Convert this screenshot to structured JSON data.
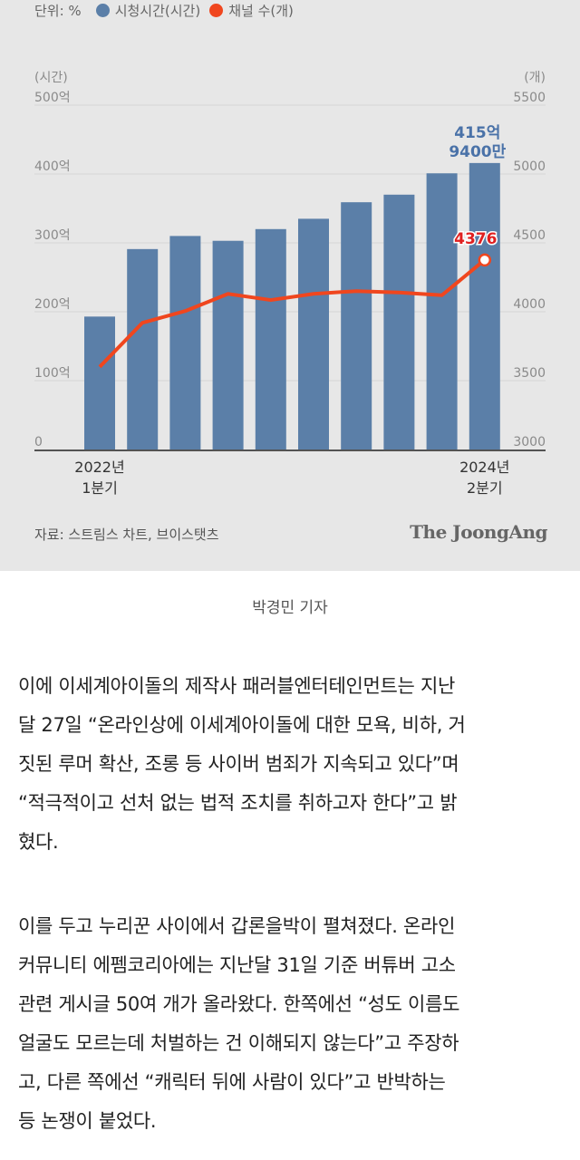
{
  "chart_data": {
    "type": "bar+line",
    "legend": {
      "unit_label": "단위: %",
      "series_labels": [
        "시청시간(시간)",
        "채널 수(개)"
      ]
    },
    "left_axis": {
      "unit": "(시간)",
      "ticks": [
        "0",
        "100억",
        "200억",
        "300억",
        "400억",
        "500억"
      ],
      "range": [
        0,
        500
      ]
    },
    "right_axis": {
      "unit": "(개)",
      "ticks": [
        "3000",
        "3500",
        "4000",
        "4500",
        "5000",
        "5500"
      ],
      "range": [
        3000,
        5500
      ]
    },
    "x_labels": [
      {
        "line1": "2022년",
        "line2": "1분기"
      },
      {
        "line1": "2024년",
        "line2": "2분기"
      }
    ],
    "categories": [
      "2022 Q1",
      "2022 Q2",
      "2022 Q3",
      "2022 Q4",
      "2023 Q1",
      "2023 Q2",
      "2023 Q3",
      "2023 Q4",
      "2024 Q1",
      "2024 Q2"
    ],
    "series": [
      {
        "name": "시청시간(시간)",
        "type": "bar",
        "axis": "left",
        "color": "#5b7fa8",
        "values": [
          193,
          291,
          310,
          303,
          320,
          335,
          359,
          370,
          401,
          415.94
        ]
      },
      {
        "name": "채널 수(개)",
        "type": "line",
        "axis": "right",
        "color": "#f0461e",
        "values": [
          3600,
          3920,
          4005,
          4130,
          4085,
          4130,
          4150,
          4140,
          4120,
          4376
        ]
      }
    ],
    "annotations": {
      "bar_last_line1": "415억",
      "bar_last_line2": "9400만",
      "line_last": "4376"
    },
    "source": "자료: 스트림스 차트, 브이스탯츠",
    "brand": "The JoongAng"
  },
  "caption": "박경민 기자",
  "paragraphs": [
    [
      "이에 이세계아이돌의 제작사 패러블엔터테인먼트는 지난",
      "달 27일 “온라인상에 이세계아이돌에 대한 모욕, 비하, 거",
      "짓된 루머 확산, 조롱 등 사이버 범죄가 지속되고 있다”며",
      "“적극적이고 선처 없는 법적 조치를 취하고자 한다”고 밝",
      "혔다."
    ],
    [
      "이를 두고 누리꾼 사이에서 갑론을박이 펼쳐졌다. 온라인",
      "커뮤니티 에펨코리아에는 지난달 31일 기준 버튜버 고소",
      "관련 게시글 50여 개가 올라왔다. 한쪽에선 “성도 이름도",
      "얼굴도 모르는데 처벌하는 건 이해되지 않는다”고 주장하",
      "고, 다른 쪽에선 “캐릭터 뒤에 사람이 있다”고 반박하는",
      "등 논쟁이 붙었다."
    ]
  ]
}
